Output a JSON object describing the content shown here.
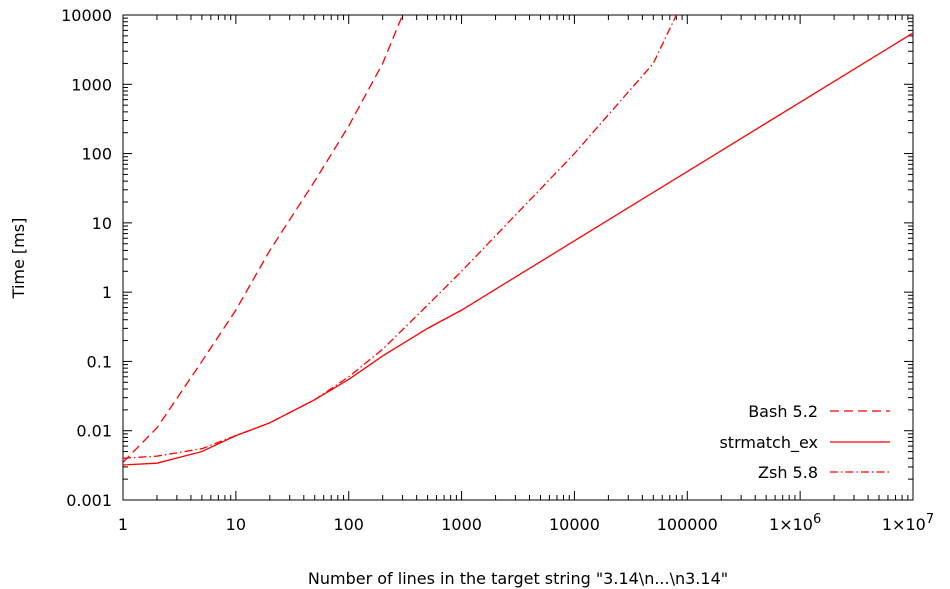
{
  "chart_data": {
    "type": "line",
    "xlabel": "Number of lines in the target string \"3.14\\n...\\n3.14\"",
    "ylabel": "Time [ms]",
    "x_scale": "log",
    "y_scale": "log",
    "xlim": [
      1,
      10000000
    ],
    "ylim": [
      0.001,
      10000
    ],
    "x_ticks": [
      {
        "value": 1,
        "label": "1"
      },
      {
        "value": 10,
        "label": "10"
      },
      {
        "value": 100,
        "label": "100"
      },
      {
        "value": 1000,
        "label": "1000"
      },
      {
        "value": 10000,
        "label": "10000"
      },
      {
        "value": 100000,
        "label": "100000"
      },
      {
        "value": 1000000,
        "label": "1×10",
        "label_exp": "6"
      },
      {
        "value": 10000000,
        "label": "1×10",
        "label_exp": "7"
      }
    ],
    "y_ticks": [
      {
        "value": 0.001,
        "label": "0.001"
      },
      {
        "value": 0.01,
        "label": "0.01"
      },
      {
        "value": 0.1,
        "label": "0.1"
      },
      {
        "value": 1,
        "label": "1"
      },
      {
        "value": 10,
        "label": "10"
      },
      {
        "value": 100,
        "label": "100"
      },
      {
        "value": 1000,
        "label": "1000"
      },
      {
        "value": 10000,
        "label": "10000"
      }
    ],
    "grid": false,
    "legend_position": "bottom-right",
    "series": [
      {
        "name": "Bash 5.2",
        "dash": "dashed",
        "color": "#ff0000",
        "points": [
          [
            1,
            0.0035
          ],
          [
            2,
            0.011
          ],
          [
            5,
            0.1
          ],
          [
            10,
            0.55
          ],
          [
            20,
            4.0
          ],
          [
            50,
            40
          ],
          [
            100,
            250
          ],
          [
            200,
            2000
          ],
          [
            300,
            10000
          ]
        ]
      },
      {
        "name": "strmatch_ex",
        "dash": "solid",
        "color": "#ff0000",
        "points": [
          [
            1,
            0.0032
          ],
          [
            2,
            0.0034
          ],
          [
            5,
            0.005
          ],
          [
            10,
            0.0085
          ],
          [
            20,
            0.013
          ],
          [
            50,
            0.028
          ],
          [
            100,
            0.055
          ],
          [
            200,
            0.12
          ],
          [
            500,
            0.3
          ],
          [
            1000,
            0.55
          ],
          [
            10000,
            5.5
          ],
          [
            100000,
            55
          ],
          [
            1000000,
            550
          ],
          [
            10000000,
            5500
          ]
        ]
      },
      {
        "name": "Zsh 5.8",
        "dash": "dashdot",
        "color": "#ff0000",
        "points": [
          [
            1,
            0.004
          ],
          [
            2,
            0.0043
          ],
          [
            5,
            0.0055
          ],
          [
            10,
            0.0085
          ],
          [
            20,
            0.013
          ],
          [
            50,
            0.028
          ],
          [
            100,
            0.06
          ],
          [
            200,
            0.15
          ],
          [
            500,
            0.65
          ],
          [
            1000,
            2.0
          ],
          [
            10000,
            100
          ],
          [
            50000,
            2000
          ],
          [
            80000,
            10000
          ]
        ]
      }
    ]
  }
}
